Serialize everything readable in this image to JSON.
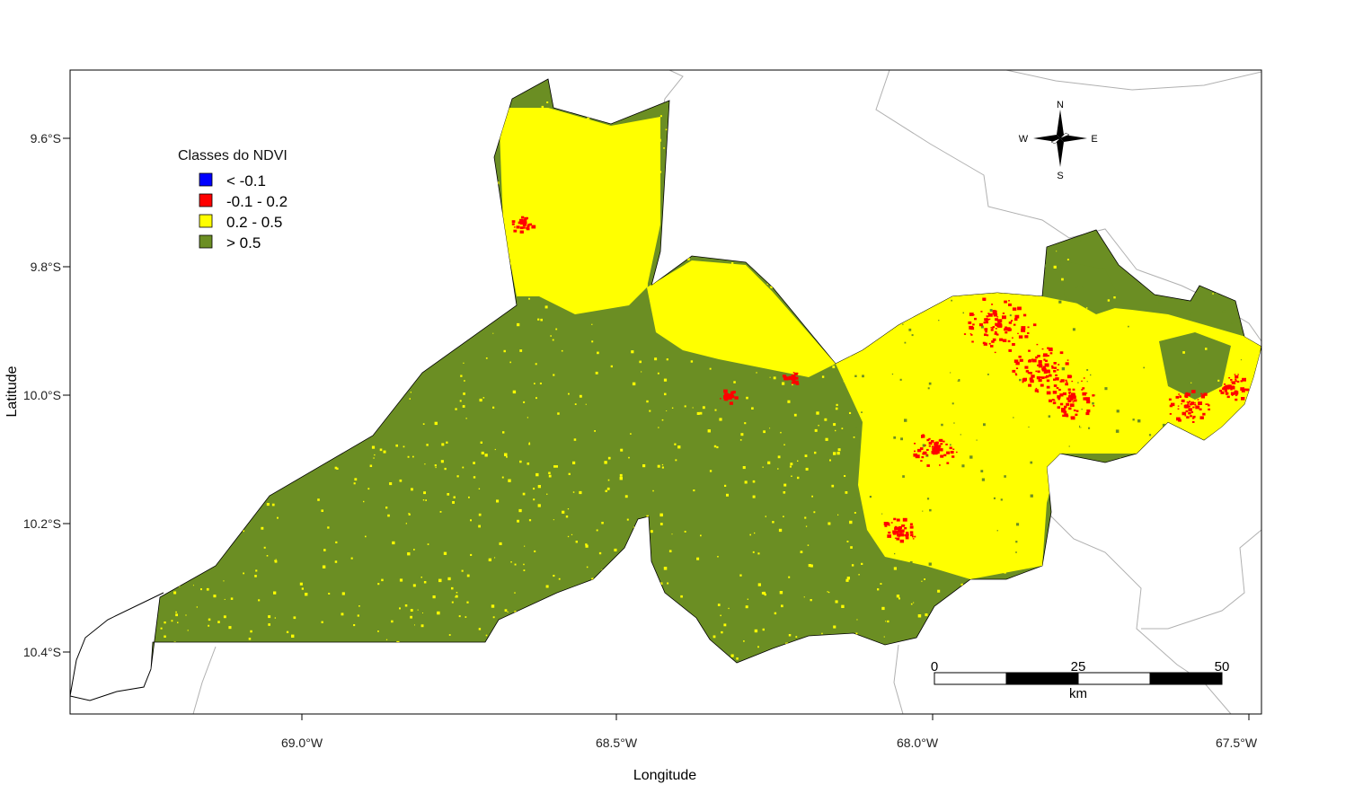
{
  "axes": {
    "xlabel": "Longitude",
    "ylabel": "Latitude",
    "x_ticks": [
      "69.0°W",
      "68.5°W",
      "68.0°W",
      "67.5°W"
    ],
    "y_ticks": [
      "9.6°S",
      "9.8°S",
      "10.0°S",
      "10.2°S",
      "10.4°S"
    ]
  },
  "legend": {
    "title": "Classes do NDVI",
    "items": [
      {
        "label": "< -0.1",
        "color": "#0000ff"
      },
      {
        "label": "-0.1 - 0.2",
        "color": "#ff0000"
      },
      {
        "label": "0.2 - 0.5",
        "color": "#ffff00"
      },
      {
        "label": "> 0.5",
        "color": "#6b8e23"
      }
    ]
  },
  "compass": {
    "n": "N",
    "s": "S",
    "e": "E",
    "w": "W"
  },
  "scalebar": {
    "labels": [
      "0",
      "25",
      "50"
    ],
    "unit": "km"
  },
  "colors": {
    "vegetation_dense": "#6b8e23",
    "vegetation_sparse": "#ffff00",
    "low_ndvi": "#ff0000",
    "water": "#0000ff",
    "borders": "#b0b0b0"
  }
}
